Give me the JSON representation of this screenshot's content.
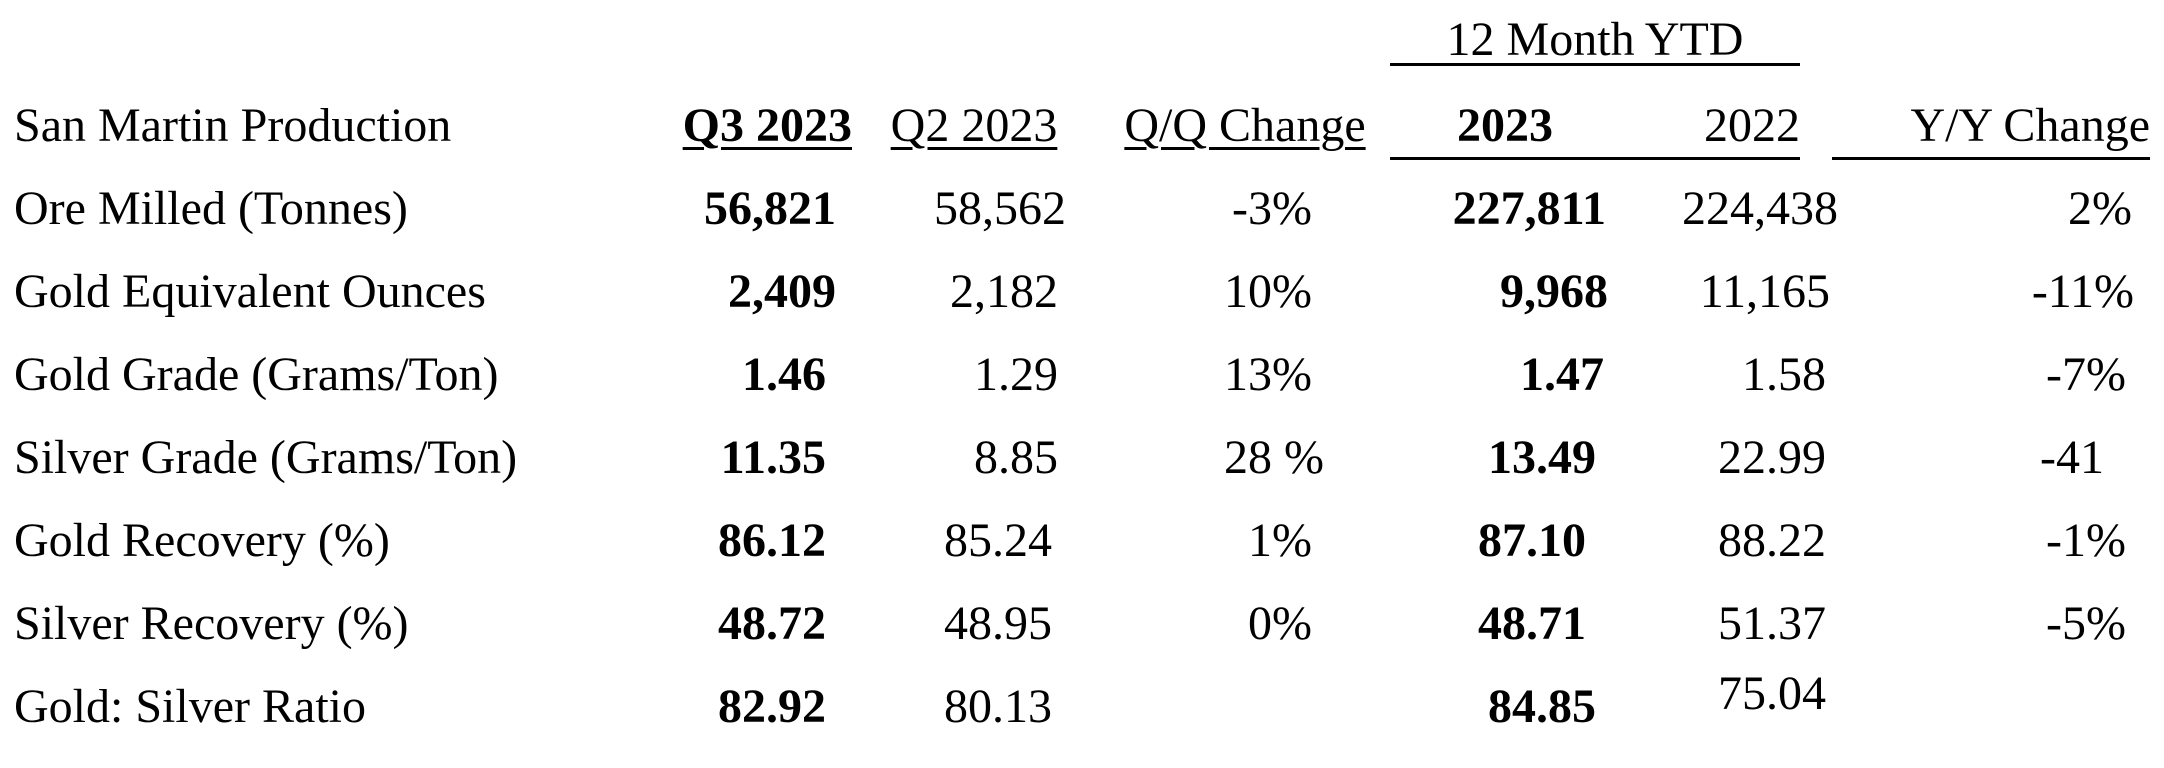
{
  "table": {
    "group_header": "12 Month YTD",
    "columns": {
      "label": "San Martin Production",
      "q3_2023": "Q3 2023",
      "q2_2023": "Q2 2023",
      "qq_change": "Q/Q Change",
      "ytd_2023": "2023",
      "ytd_2022": "2022",
      "yy_change": "Y/Y Change"
    },
    "rows": [
      {
        "label": "Ore Milled (Tonnes)",
        "q3_2023": "56,821",
        "q2_2023": "58,562",
        "qq_change": "-3%",
        "ytd_2023": "227,811",
        "ytd_2022": "224,438",
        "yy_change": "2%"
      },
      {
        "label": "Gold Equivalent Ounces",
        "q3_2023": "2,409",
        "q2_2023": "2,182",
        "qq_change": "10%",
        "ytd_2023": "9,968",
        "ytd_2022": "11,165",
        "yy_change": "-11%"
      },
      {
        "label": "Gold Grade (Grams/Ton)",
        "q3_2023": "1.46",
        "q2_2023": "1.29",
        "qq_change": "13%",
        "ytd_2023": "1.47",
        "ytd_2022": "1.58",
        "yy_change": "-7%"
      },
      {
        "label": "Silver Grade (Grams/Ton)",
        "q3_2023": "11.35",
        "q2_2023": "8.85",
        "qq_change": "28 %",
        "ytd_2023": "13.49",
        "ytd_2022": "22.99",
        "yy_change": "-41"
      },
      {
        "label": "Gold Recovery (%)",
        "q3_2023": "86.12",
        "q2_2023": "85.24",
        "qq_change": "1%",
        "ytd_2023": "87.10",
        "ytd_2022": "88.22",
        "yy_change": "-1%"
      },
      {
        "label": "Silver Recovery (%)",
        "q3_2023": "48.72",
        "q2_2023": "48.95",
        "qq_change": "0%",
        "ytd_2023": "48.71",
        "ytd_2022": "51.37",
        "yy_change": "-5%"
      },
      {
        "label": "Gold: Silver Ratio",
        "q3_2023": "82.92",
        "q2_2023": "80.13",
        "qq_change": "",
        "ytd_2023": "84.85",
        "ytd_2022": "75.04",
        "yy_change": ""
      }
    ]
  }
}
